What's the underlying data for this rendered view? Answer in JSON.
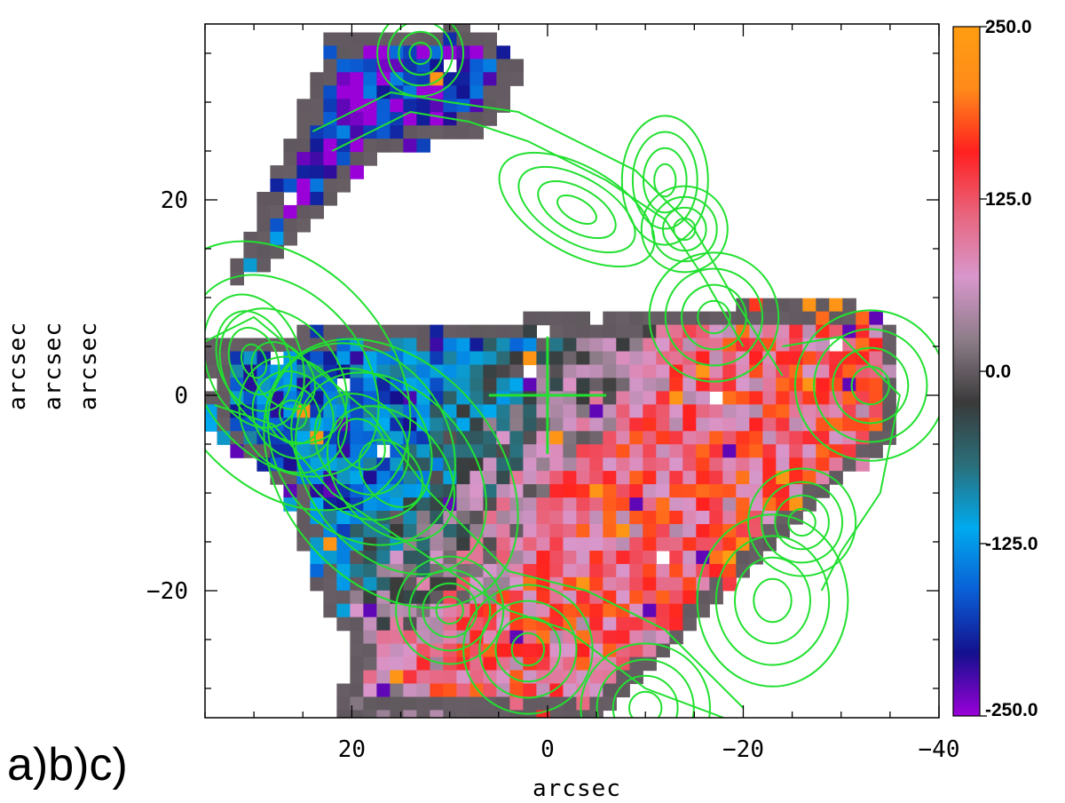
{
  "chart_data": {
    "type": "heatmap",
    "xlabel": "arcsec",
    "ylabels": [
      "arcsec",
      "arcsec",
      "arcsec"
    ],
    "xlim": [
      35,
      -40
    ],
    "ylim": [
      -33,
      38
    ],
    "x_ticks": [
      20,
      0,
      -20,
      -40
    ],
    "y_ticks": [
      20,
      0,
      -20
    ],
    "x_tick_labels": [
      "20",
      "0",
      "−20",
      "−40"
    ],
    "y_tick_labels": [
      "20",
      "0",
      "−20"
    ],
    "grid": false,
    "colorbar": {
      "min": -250.0,
      "max": 250.0,
      "tick_values": [
        250.0,
        125.0,
        0.0,
        -125.0,
        -250.0
      ],
      "tick_labels": [
        "250.0",
        "125.0",
        "0.0",
        "-125.0",
        "-250.0"
      ],
      "colors": [
        "#9a00d8",
        "#14108e",
        "#0a5fd6",
        "#00aaee",
        "#2a6f7a",
        "#3a3a3a",
        "#8c7c88",
        "#d897cc",
        "#e8657e",
        "#ff2020",
        "#ff8a1a",
        "#ff9d12"
      ]
    },
    "panel_label": "a)b)c)",
    "contour_color": "#22e030",
    "missing_color": "#ffffff",
    "velocity_field": {
      "description_values": "approaching side (blue) at upper-left / positive x, receding side (red) at lower-right / negative x",
      "approaching_side_value": -150,
      "receding_side_value": 120
    },
    "center_cross": {
      "x": 0,
      "y": 0
    }
  }
}
